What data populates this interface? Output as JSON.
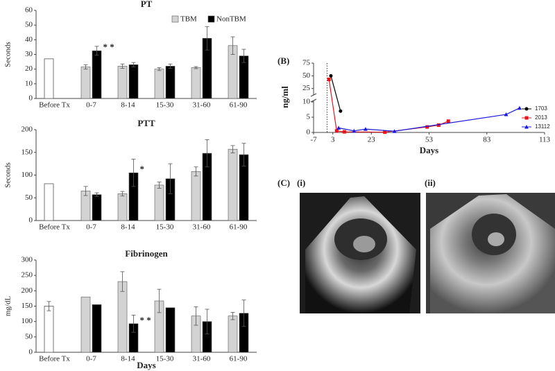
{
  "chart_data": [
    {
      "type": "bar",
      "title": "PT",
      "ylabel": "Seconds",
      "categories": [
        "Before Tx",
        "0-7",
        "8-14",
        "15-30",
        "31-60",
        "61-90"
      ],
      "baseline": 27,
      "baseline_color": "#ffffff",
      "series": [
        {
          "name": "TBM",
          "color": "#d3d3d3",
          "values": [
            null,
            21.5,
            22,
            20,
            21,
            36
          ],
          "errors": [
            null,
            1.5,
            1.5,
            1,
            0.7,
            6
          ]
        },
        {
          "name": "NonTBM",
          "color": "#000000",
          "values": [
            null,
            32.5,
            23,
            22,
            41,
            29
          ],
          "errors": [
            null,
            3,
            1.5,
            1.5,
            8,
            4.5
          ]
        }
      ],
      "significance": [
        null,
        "* *",
        null,
        null,
        null,
        null
      ],
      "ylim": [
        0,
        60
      ],
      "yticks": [
        0,
        10,
        20,
        30,
        40,
        50,
        60
      ],
      "legend": "top-right"
    },
    {
      "type": "bar",
      "title": "PTT",
      "ylabel": "Seconds",
      "categories": [
        "Before Tx",
        "0-7",
        "8-14",
        "15-30",
        "31-60",
        "61-90"
      ],
      "baseline": 81,
      "baseline_color": "#ffffff",
      "series": [
        {
          "name": "TBM",
          "color": "#d3d3d3",
          "values": [
            null,
            65,
            59,
            78,
            108,
            157
          ],
          "errors": [
            null,
            10,
            5,
            7,
            10,
            8
          ]
        },
        {
          "name": "NonTBM",
          "color": "#000000",
          "values": [
            null,
            57,
            105,
            92,
            148,
            145
          ],
          "errors": [
            null,
            4,
            30,
            33,
            30,
            25
          ]
        }
      ],
      "significance": [
        null,
        null,
        "*",
        null,
        null,
        null
      ],
      "ylim": [
        0,
        200
      ],
      "yticks": [
        0,
        50,
        100,
        150,
        200
      ]
    },
    {
      "type": "bar",
      "title": "Fibrinogen",
      "ylabel": "mg/dL",
      "xlabel": "Days",
      "categories": [
        "Before Tx",
        "0-7",
        "8-14",
        "15-30",
        "31-60",
        "61-90"
      ],
      "baseline": 150,
      "baseline_error": 15,
      "baseline_color": "#ffffff",
      "series": [
        {
          "name": "TBM",
          "color": "#d3d3d3",
          "values": [
            null,
            180,
            230,
            167,
            118,
            118
          ],
          "errors": [
            null,
            null,
            32,
            38,
            30,
            12
          ]
        },
        {
          "name": "NonTBM",
          "color": "#000000",
          "values": [
            null,
            155,
            93,
            145,
            100,
            127
          ],
          "errors": [
            null,
            null,
            28,
            null,
            40,
            43
          ]
        }
      ],
      "significance": [
        null,
        null,
        "* *",
        null,
        null,
        null
      ],
      "ylim": [
        0,
        300
      ],
      "yticks": [
        0,
        50,
        100,
        150,
        200,
        250,
        300
      ]
    },
    {
      "type": "line",
      "panel_label": "(B)",
      "ylabel": "ng/ml",
      "xlabel": "Days",
      "series": [
        {
          "name": "1703",
          "color": "#000000",
          "marker": "circle",
          "x": [
            2,
            7
          ],
          "values": [
            50,
            7
          ]
        },
        {
          "name": "2013",
          "color": "#e8141b",
          "marker": "square",
          "x": [
            1,
            5,
            9,
            30,
            52,
            58,
            63
          ],
          "values": [
            43,
            0.5,
            0.2,
            0.1,
            1.8,
            2.4,
            3.7
          ]
        },
        {
          "name": "13112",
          "color": "#1a1adb",
          "marker": "triangle",
          "x": [
            6,
            14,
            20,
            35,
            93,
            100
          ],
          "values": [
            1.5,
            0.5,
            1.1,
            0.4,
            5.9,
            8
          ]
        }
      ],
      "xlim": [
        -7,
        113
      ],
      "xticks": [
        -7,
        3,
        23,
        53,
        83,
        113
      ],
      "ylim": [
        0,
        75
      ],
      "ybreak": [
        10,
        15
      ],
      "yticks": [
        0,
        5,
        10,
        25,
        50,
        75
      ],
      "vline": 0,
      "legend": "right"
    }
  ],
  "images": {
    "panel_label": "(C)",
    "labels": [
      "(i)",
      "(ii)"
    ]
  }
}
